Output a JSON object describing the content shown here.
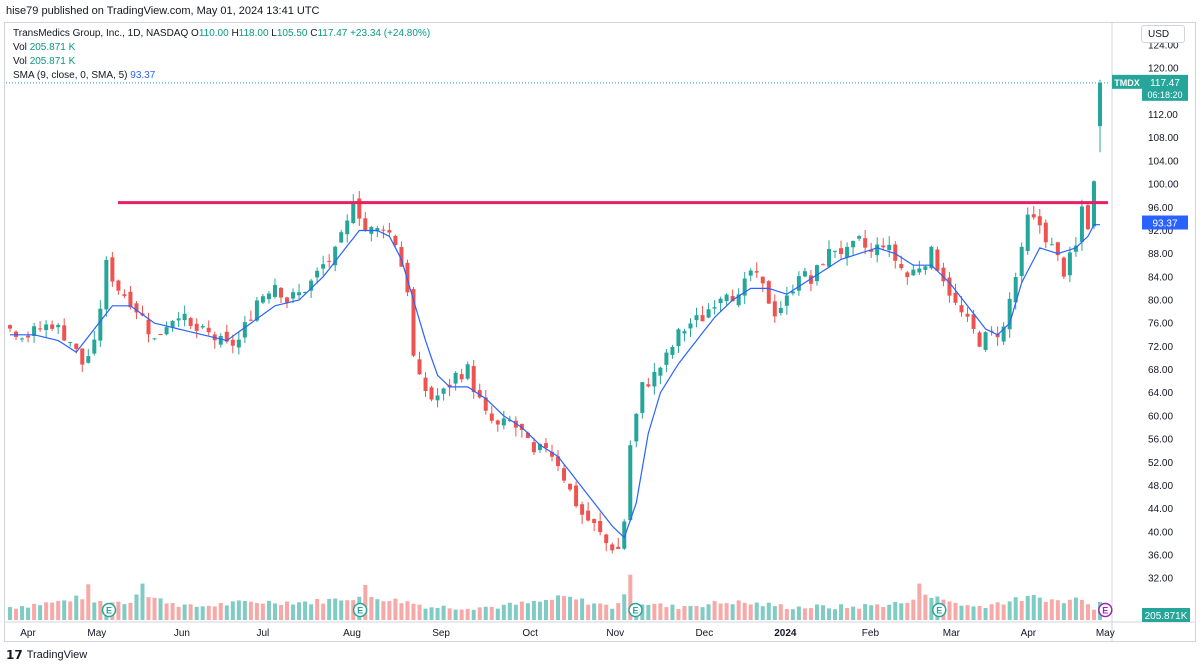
{
  "publish_line": "hise79 published on TradingView.com, May 01, 2024 13:41 UTC",
  "legend": {
    "symbol_line": "TransMedics Group, Inc., 1D, NASDAQ",
    "o_label": "O",
    "o": "110.00",
    "h_label": "H",
    "h": "118.00",
    "l_label": "L",
    "l": "105.50",
    "c_label": "C",
    "c": "117.47",
    "change": "+23.34 (+24.80%)",
    "vol1_label": "Vol",
    "vol1": "205.871 K",
    "vol2_label": "Vol",
    "vol2": "205.871 K",
    "sma_label": "SMA (9, close, 0, SMA, 5)",
    "sma_value": "93.37"
  },
  "currency": "USD",
  "footer_brand": "TradingView",
  "colors": {
    "up": "#26a69a",
    "down": "#ef5350",
    "sma": "#2962ff",
    "resistance": "#e91e63",
    "vol_up": "#80cbc4",
    "vol_down": "#f7a9a7"
  },
  "chart_data": {
    "type": "candlestick",
    "ylim": [
      34,
      124
    ],
    "y_ticks": [
      "124.00",
      "120.00",
      "112.00",
      "108.00",
      "104.00",
      "100.00",
      "96.00",
      "92.00",
      "88.00",
      "84.00",
      "80.00",
      "76.00",
      "72.00",
      "68.00",
      "64.00",
      "60.00",
      "56.00",
      "52.00",
      "48.00",
      "44.00",
      "40.00",
      "36.00",
      "32.00"
    ],
    "x_ticks": [
      "Apr",
      "May",
      "Jun",
      "Jul",
      "Aug",
      "Sep",
      "Oct",
      "Nov",
      "Dec",
      "2024",
      "Feb",
      "Mar",
      "Apr",
      "May"
    ],
    "last_price": {
      "ticker": "TMDX",
      "price": "117.47",
      "countdown": "06:18:20"
    },
    "sma_label_value": "93.37",
    "volume_label": "205.871K",
    "resistance_level": 96.8,
    "earnings_markers": [
      "E",
      "E",
      "E",
      "E",
      "E"
    ],
    "close_path": [
      [
        0,
        75
      ],
      [
        3,
        74
      ],
      [
        7,
        76
      ],
      [
        10,
        73
      ],
      [
        12,
        69
      ],
      [
        14,
        72
      ],
      [
        16,
        86
      ],
      [
        18,
        82
      ],
      [
        20,
        80
      ],
      [
        22,
        77
      ],
      [
        24,
        73
      ],
      [
        26,
        76
      ],
      [
        28,
        78
      ],
      [
        30,
        75
      ],
      [
        33,
        74
      ],
      [
        36,
        72
      ],
      [
        38,
        73
      ],
      [
        41,
        80
      ],
      [
        44,
        83
      ],
      [
        46,
        80
      ],
      [
        48,
        81
      ],
      [
        50,
        83
      ],
      [
        52,
        86
      ],
      [
        54,
        88
      ],
      [
        56,
        93
      ],
      [
        57,
        98
      ],
      [
        59,
        92
      ],
      [
        61,
        92
      ],
      [
        62,
        93
      ],
      [
        64,
        90
      ],
      [
        66,
        82
      ],
      [
        67,
        70
      ],
      [
        68,
        66
      ],
      [
        70,
        63
      ],
      [
        72,
        64
      ],
      [
        74,
        67
      ],
      [
        76,
        68
      ],
      [
        77,
        65
      ],
      [
        79,
        60
      ],
      [
        81,
        58
      ],
      [
        83,
        59
      ],
      [
        85,
        57
      ],
      [
        87,
        53
      ],
      [
        89,
        55
      ],
      [
        91,
        52
      ],
      [
        93,
        47
      ],
      [
        95,
        43
      ],
      [
        97,
        41
      ],
      [
        99,
        38
      ],
      [
        101,
        37
      ],
      [
        102,
        42
      ],
      [
        103,
        55
      ],
      [
        105,
        65
      ],
      [
        107,
        67
      ],
      [
        109,
        70
      ],
      [
        111,
        74
      ],
      [
        113,
        76
      ],
      [
        115,
        77
      ],
      [
        117,
        80
      ],
      [
        119,
        82
      ],
      [
        121,
        80
      ],
      [
        123,
        85
      ],
      [
        125,
        82
      ],
      [
        127,
        78
      ],
      [
        129,
        80
      ],
      [
        131,
        85
      ],
      [
        133,
        83
      ],
      [
        135,
        87
      ],
      [
        137,
        89
      ],
      [
        139,
        88
      ],
      [
        141,
        90
      ],
      [
        143,
        88
      ],
      [
        145,
        90
      ],
      [
        147,
        87
      ],
      [
        149,
        84
      ],
      [
        151,
        86
      ],
      [
        153,
        88
      ],
      [
        155,
        84
      ],
      [
        157,
        79
      ],
      [
        159,
        76
      ],
      [
        161,
        73
      ],
      [
        163,
        74
      ],
      [
        165,
        75
      ],
      [
        166,
        80
      ],
      [
        168,
        88
      ],
      [
        169,
        94
      ],
      [
        171,
        93
      ],
      [
        173,
        89
      ],
      [
        175,
        85
      ],
      [
        177,
        89
      ],
      [
        178,
        96
      ],
      [
        179,
        93
      ],
      [
        180,
        100
      ],
      [
        181,
        117
      ]
    ],
    "sma_path": [
      [
        0,
        74
      ],
      [
        4,
        74
      ],
      [
        8,
        73
      ],
      [
        11,
        71
      ],
      [
        14,
        75
      ],
      [
        17,
        79
      ],
      [
        20,
        79
      ],
      [
        24,
        76
      ],
      [
        28,
        75
      ],
      [
        32,
        74
      ],
      [
        36,
        73
      ],
      [
        40,
        76
      ],
      [
        44,
        79
      ],
      [
        48,
        80
      ],
      [
        52,
        84
      ],
      [
        55,
        88
      ],
      [
        58,
        92
      ],
      [
        61,
        92
      ],
      [
        63,
        91
      ],
      [
        65,
        87
      ],
      [
        67,
        80
      ],
      [
        69,
        73
      ],
      [
        71,
        67
      ],
      [
        73,
        65
      ],
      [
        76,
        65
      ],
      [
        79,
        63
      ],
      [
        82,
        60
      ],
      [
        85,
        58
      ],
      [
        88,
        55
      ],
      [
        91,
        53
      ],
      [
        94,
        49
      ],
      [
        97,
        45
      ],
      [
        100,
        41
      ],
      [
        102,
        39
      ],
      [
        104,
        45
      ],
      [
        106,
        57
      ],
      [
        108,
        64
      ],
      [
        111,
        69
      ],
      [
        114,
        73
      ],
      [
        117,
        77
      ],
      [
        120,
        80
      ],
      [
        123,
        82
      ],
      [
        126,
        82
      ],
      [
        129,
        81
      ],
      [
        132,
        83
      ],
      [
        135,
        85
      ],
      [
        138,
        87
      ],
      [
        141,
        88
      ],
      [
        144,
        89
      ],
      [
        147,
        88
      ],
      [
        150,
        86
      ],
      [
        153,
        86
      ],
      [
        156,
        83
      ],
      [
        159,
        79
      ],
      [
        162,
        75
      ],
      [
        164,
        74
      ],
      [
        166,
        76
      ],
      [
        168,
        83
      ],
      [
        171,
        89
      ],
      [
        174,
        88
      ],
      [
        177,
        89
      ],
      [
        179,
        91
      ],
      [
        180,
        93
      ]
    ],
    "volume_profile": [
      [
        0,
        2
      ],
      [
        8,
        3
      ],
      [
        12,
        4
      ],
      [
        13,
        6
      ],
      [
        14,
        3
      ],
      [
        20,
        3
      ],
      [
        21,
        5
      ],
      [
        22,
        7
      ],
      [
        23,
        4
      ],
      [
        30,
        2
      ],
      [
        40,
        3
      ],
      [
        50,
        3
      ],
      [
        58,
        4
      ],
      [
        59,
        6
      ],
      [
        60,
        4
      ],
      [
        66,
        3
      ],
      [
        70,
        2
      ],
      [
        80,
        2
      ],
      [
        88,
        3
      ],
      [
        92,
        4
      ],
      [
        96,
        3
      ],
      [
        100,
        2
      ],
      [
        102,
        4
      ],
      [
        103,
        9
      ],
      [
        104,
        3
      ],
      [
        110,
        2
      ],
      [
        120,
        3
      ],
      [
        130,
        2
      ],
      [
        140,
        2
      ],
      [
        150,
        3
      ],
      [
        151,
        7
      ],
      [
        152,
        5
      ],
      [
        153,
        4
      ],
      [
        160,
        2
      ],
      [
        165,
        3
      ],
      [
        170,
        4
      ],
      [
        175,
        3
      ],
      [
        178,
        4
      ],
      [
        180,
        2
      ],
      [
        181,
        3
      ]
    ]
  }
}
